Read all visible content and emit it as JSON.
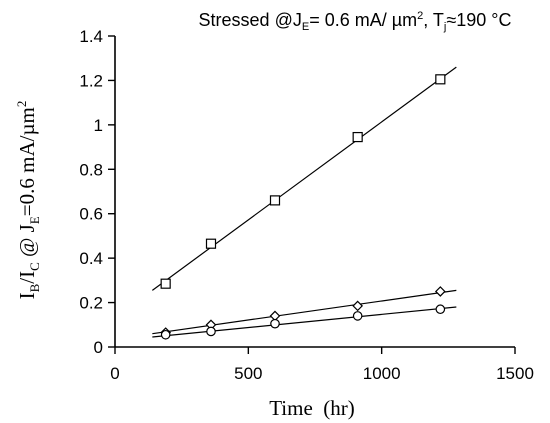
{
  "chart_data": {
    "type": "scatter",
    "title_parts": [
      "Stressed @J",
      "E",
      "= 0.6 mA/ ",
      "µm",
      "2",
      ", T",
      "j",
      "≈190 °C"
    ],
    "xlabel": "Time  (hr)",
    "ylabel_parts": [
      "I",
      "B",
      "/I",
      "C",
      " @ J",
      "E",
      "=0.6 mA/µm",
      "2"
    ],
    "xlim": [
      0,
      1500
    ],
    "ylim": [
      0,
      1.4
    ],
    "xticks": [
      0,
      500,
      1000,
      1500
    ],
    "xtick_labels": [
      "0",
      "500",
      "1000",
      "1500"
    ],
    "yticks": [
      0,
      0.2,
      0.4,
      0.6,
      0.8,
      1.0,
      1.2,
      1.4
    ],
    "ytick_labels": [
      "0",
      "0.2",
      "0.4",
      "0.6",
      "0.8",
      "1",
      "1.2",
      "1.4"
    ],
    "grid": false,
    "legend": "none",
    "series": [
      {
        "marker": "square",
        "x": [
          190,
          360,
          600,
          910,
          1220
        ],
        "y": [
          0.285,
          0.465,
          0.66,
          0.945,
          1.205
        ],
        "fit": {
          "x": [
            140,
            1280
          ],
          "y": [
            0.255,
            1.26
          ]
        }
      },
      {
        "marker": "diamond",
        "x": [
          190,
          360,
          600,
          910,
          1220
        ],
        "y": [
          0.065,
          0.1,
          0.14,
          0.185,
          0.25
        ],
        "fit": {
          "x": [
            140,
            1280
          ],
          "y": [
            0.06,
            0.255
          ]
        }
      },
      {
        "marker": "circle",
        "x": [
          190,
          360,
          600,
          910,
          1220
        ],
        "y": [
          0.055,
          0.07,
          0.105,
          0.14,
          0.17
        ],
        "fit": {
          "x": [
            140,
            1280
          ],
          "y": [
            0.045,
            0.18
          ]
        }
      }
    ]
  }
}
